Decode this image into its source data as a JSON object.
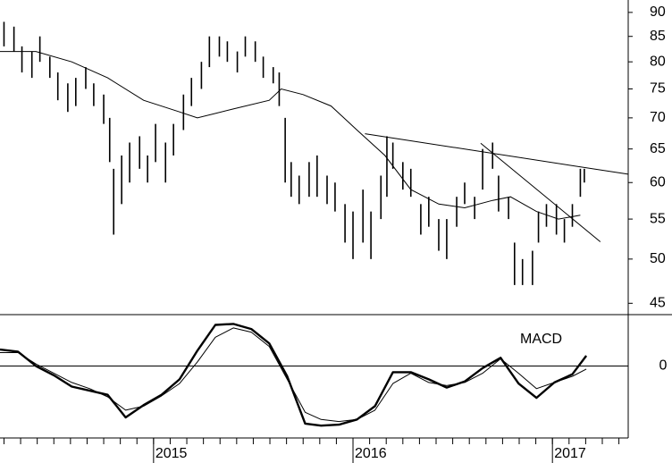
{
  "chart_data": [
    {
      "type": "ohlc",
      "log_scale": true,
      "color": "#000000",
      "xlim": [
        2014.23,
        2017.38
      ],
      "ylim": [
        43.8,
        92.7
      ],
      "yticks": [
        45,
        50,
        55,
        60,
        65,
        70,
        75,
        80,
        85,
        90
      ],
      "bars": {
        "x": [
          2014.25,
          2014.3,
          2014.34,
          2014.39,
          2014.43,
          2014.48,
          2014.52,
          2014.57,
          2014.61,
          2014.66,
          2014.7,
          2014.75,
          2014.78,
          2014.8,
          2014.84,
          2014.88,
          2014.93,
          2014.97,
          2015.01,
          2015.06,
          2015.1,
          2015.15,
          2015.19,
          2015.24,
          2015.28,
          2015.33,
          2015.37,
          2015.42,
          2015.46,
          2015.51,
          2015.55,
          2015.6,
          2015.63,
          2015.66,
          2015.69,
          2015.73,
          2015.78,
          2015.82,
          2015.87,
          2015.91,
          2015.96,
          2016.0,
          2016.05,
          2016.09,
          2016.14,
          2016.17,
          2016.2,
          2016.25,
          2016.29,
          2016.34,
          2016.38,
          2016.43,
          2016.47,
          2016.52,
          2016.56,
          2016.61,
          2016.65,
          2016.7,
          2016.73,
          2016.78,
          2016.81,
          2016.85,
          2016.9,
          2016.93,
          2016.97,
          2017.02,
          2017.06,
          2017.1,
          2017.14,
          2017.16
        ],
        "high": [
          88,
          87,
          83,
          82,
          85,
          81,
          78,
          76,
          77,
          79,
          76,
          74,
          70,
          62,
          64,
          66,
          67,
          64,
          69,
          66,
          69,
          74,
          77,
          80,
          85,
          85,
          84,
          82,
          85,
          84,
          81,
          79,
          78,
          70,
          63,
          61,
          63,
          64,
          61,
          60,
          57,
          56,
          59,
          56,
          61,
          67,
          66,
          63,
          62,
          57,
          58,
          55,
          55,
          58,
          60,
          58,
          65,
          66,
          61,
          58,
          52,
          50,
          51,
          56,
          57,
          57,
          55,
          57,
          62,
          62
        ],
        "low": [
          83,
          82,
          78,
          77,
          80,
          77,
          73,
          71,
          72,
          75,
          72,
          69,
          63,
          53,
          57,
          60,
          62,
          60,
          63,
          60,
          64,
          68,
          72,
          75,
          79,
          81,
          80,
          78,
          81,
          80,
          77,
          76,
          72,
          60,
          58,
          57,
          58,
          58,
          57,
          56,
          52,
          50,
          52,
          50,
          55,
          58,
          62,
          59,
          58,
          53,
          54,
          51,
          50,
          54,
          57,
          55,
          59,
          62,
          56,
          55,
          47,
          47,
          47,
          52,
          54,
          53,
          52,
          54,
          58,
          60
        ]
      },
      "moving_average": {
        "x": [
          2014.23,
          2014.41,
          2014.59,
          2014.77,
          2014.95,
          2015.13,
          2015.22,
          2015.4,
          2015.58,
          2015.64,
          2015.75,
          2015.89,
          2016.02,
          2016.16,
          2016.29,
          2016.43,
          2016.56,
          2016.7,
          2016.79,
          2016.92,
          2017.03,
          2017.14
        ],
        "values": [
          82,
          82,
          80,
          77,
          73,
          71,
          70,
          71.5,
          73,
          75,
          74,
          72,
          68,
          64,
          59,
          57,
          56.5,
          57.5,
          58,
          56,
          55,
          55.5
        ]
      },
      "trendlines": [
        {
          "x": [
            2016.06,
            2017.38
          ],
          "values": [
            67.4,
            61.2
          ]
        },
        {
          "x": [
            2016.64,
            2017.24
          ],
          "values": [
            65.9,
            52.1
          ]
        }
      ]
    },
    {
      "type": "line",
      "title": "MACD",
      "xlim": [
        2014.23,
        2017.38
      ],
      "xticks": [
        2015,
        2016,
        2017
      ],
      "ylim": [
        -7,
        5
      ],
      "yticks": [
        0
      ],
      "x": [
        2014.23,
        2014.32,
        2014.41,
        2014.5,
        2014.59,
        2014.68,
        2014.77,
        2014.86,
        2014.95,
        2015.04,
        2015.13,
        2015.22,
        2015.31,
        2015.4,
        2015.49,
        2015.58,
        2015.67,
        2015.76,
        2015.84,
        2015.93,
        2016.02,
        2016.11,
        2016.2,
        2016.29,
        2016.38,
        2016.47,
        2016.56,
        2016.65,
        2016.74,
        2016.83,
        2016.92,
        2017.01,
        2017.1,
        2017.17
      ],
      "series": [
        {
          "color": "#000000",
          "line_width": 2.4,
          "values": [
            1.6,
            1.4,
            0.0,
            -0.9,
            -2.0,
            -2.4,
            -2.8,
            -5.0,
            -3.8,
            -2.8,
            -1.3,
            1.5,
            4.0,
            4.1,
            3.6,
            2.2,
            -1.0,
            -5.6,
            -5.8,
            -5.7,
            -5.2,
            -3.9,
            -0.6,
            -0.6,
            -1.3,
            -2.1,
            -1.5,
            -0.2,
            0.8,
            -1.7,
            -3.1,
            -1.6,
            -0.8,
            1.0
          ]
        },
        {
          "color": "#000000",
          "line_width": 1,
          "values": [
            1.3,
            1.3,
            0.2,
            -0.7,
            -1.6,
            -2.2,
            -3.0,
            -4.3,
            -3.9,
            -2.9,
            -1.7,
            0.4,
            2.8,
            3.7,
            3.3,
            1.9,
            -1.3,
            -4.5,
            -5.2,
            -5.4,
            -5.2,
            -4.3,
            -1.7,
            -0.7,
            -1.6,
            -1.9,
            -1.6,
            -0.7,
            0.7,
            -0.7,
            -2.2,
            -1.6,
            -1.0,
            -0.3
          ]
        }
      ]
    }
  ]
}
